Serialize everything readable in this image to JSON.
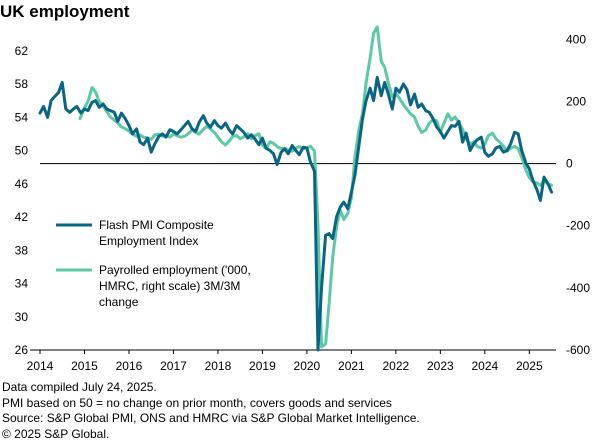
{
  "chart_data": {
    "type": "line",
    "title": "UK employment",
    "x_ticks": [
      "2014",
      "2015",
      "2016",
      "2017",
      "2018",
      "2019",
      "2020",
      "2021",
      "2022",
      "2023",
      "2024",
      "2025"
    ],
    "x_range": [
      2014.0,
      2025.6
    ],
    "left_axis": {
      "ticks": [
        26,
        30,
        34,
        38,
        42,
        46,
        50,
        54,
        58,
        62
      ],
      "range": [
        26,
        64.5
      ]
    },
    "right_axis": {
      "ticks": [
        -600,
        -400,
        -200,
        0,
        200,
        400
      ],
      "range": [
        -600,
        430
      ]
    },
    "reference_line": {
      "axis": "right",
      "value": 0
    },
    "legend": [
      {
        "label": "Flash PMI Composite Employment Index",
        "lines": [
          "Flash PMI Composite",
          "Employment Index"
        ],
        "color": "#0a6585"
      },
      {
        "label": "Payrolled employment ('000, HMRC, right scale) 3M/3M change",
        "lines": [
          "Payrolled employment ('000,",
          "HMRC, right scale) 3M/3M",
          "change"
        ],
        "color": "#5cc9a4"
      }
    ],
    "series": [
      {
        "name": "Flash PMI Composite Employment Index",
        "axis": "left",
        "color": "#0a6585",
        "points": [
          [
            2014.0,
            54.5
          ],
          [
            2014.08,
            55.3
          ],
          [
            2014.17,
            54.0
          ],
          [
            2014.25,
            56.0
          ],
          [
            2014.33,
            56.5
          ],
          [
            2014.42,
            57.0
          ],
          [
            2014.5,
            58.2
          ],
          [
            2014.58,
            55.0
          ],
          [
            2014.67,
            54.6
          ],
          [
            2014.75,
            55.0
          ],
          [
            2014.83,
            55.3
          ],
          [
            2014.92,
            54.5
          ],
          [
            2015.0,
            55.0
          ],
          [
            2015.08,
            54.8
          ],
          [
            2015.17,
            55.8
          ],
          [
            2015.25,
            56.0
          ],
          [
            2015.33,
            55.2
          ],
          [
            2015.42,
            55.6
          ],
          [
            2015.5,
            55.0
          ],
          [
            2015.58,
            54.8
          ],
          [
            2015.67,
            54.6
          ],
          [
            2015.75,
            53.5
          ],
          [
            2015.83,
            54.5
          ],
          [
            2015.92,
            53.8
          ],
          [
            2016.0,
            53.0
          ],
          [
            2016.08,
            52.0
          ],
          [
            2016.17,
            52.6
          ],
          [
            2016.25,
            51.0
          ],
          [
            2016.33,
            50.7
          ],
          [
            2016.42,
            51.5
          ],
          [
            2016.5,
            49.8
          ],
          [
            2016.58,
            50.8
          ],
          [
            2016.67,
            51.7
          ],
          [
            2016.75,
            52.0
          ],
          [
            2016.83,
            51.6
          ],
          [
            2016.92,
            52.5
          ],
          [
            2017.0,
            52.3
          ],
          [
            2017.08,
            52.0
          ],
          [
            2017.17,
            52.5
          ],
          [
            2017.25,
            53.0
          ],
          [
            2017.33,
            53.5
          ],
          [
            2017.42,
            52.6
          ],
          [
            2017.5,
            52.3
          ],
          [
            2017.58,
            53.4
          ],
          [
            2017.67,
            54.2
          ],
          [
            2017.75,
            53.3
          ],
          [
            2017.83,
            52.8
          ],
          [
            2017.92,
            53.6
          ],
          [
            2018.0,
            53.0
          ],
          [
            2018.08,
            52.7
          ],
          [
            2018.17,
            53.3
          ],
          [
            2018.25,
            52.5
          ],
          [
            2018.33,
            52.0
          ],
          [
            2018.42,
            53.0
          ],
          [
            2018.5,
            52.6
          ],
          [
            2018.58,
            52.2
          ],
          [
            2018.67,
            51.5
          ],
          [
            2018.75,
            51.9
          ],
          [
            2018.83,
            51.4
          ],
          [
            2018.92,
            50.7
          ],
          [
            2019.0,
            51.5
          ],
          [
            2019.08,
            50.3
          ],
          [
            2019.17,
            50.0
          ],
          [
            2019.25,
            49.6
          ],
          [
            2019.33,
            48.3
          ],
          [
            2019.42,
            49.8
          ],
          [
            2019.5,
            50.2
          ],
          [
            2019.58,
            49.6
          ],
          [
            2019.67,
            50.6
          ],
          [
            2019.75,
            50.0
          ],
          [
            2019.83,
            49.5
          ],
          [
            2019.92,
            50.4
          ],
          [
            2020.0,
            50.3
          ],
          [
            2020.08,
            48.6
          ],
          [
            2020.17,
            47.5
          ],
          [
            2020.25,
            26.0
          ],
          [
            2020.33,
            33.6
          ],
          [
            2020.42,
            39.8
          ],
          [
            2020.5,
            40.0
          ],
          [
            2020.58,
            39.4
          ],
          [
            2020.67,
            42.1
          ],
          [
            2020.75,
            43.2
          ],
          [
            2020.83,
            43.8
          ],
          [
            2020.92,
            43.0
          ],
          [
            2021.0,
            45.0
          ],
          [
            2021.08,
            47.0
          ],
          [
            2021.17,
            50.6
          ],
          [
            2021.25,
            53.8
          ],
          [
            2021.33,
            56.0
          ],
          [
            2021.42,
            57.5
          ],
          [
            2021.5,
            56.0
          ],
          [
            2021.58,
            58.8
          ],
          [
            2021.67,
            56.6
          ],
          [
            2021.75,
            58.2
          ],
          [
            2021.83,
            56.8
          ],
          [
            2021.92,
            55.0
          ],
          [
            2022.0,
            57.5
          ],
          [
            2022.08,
            57.0
          ],
          [
            2022.17,
            58.0
          ],
          [
            2022.25,
            57.3
          ],
          [
            2022.33,
            55.5
          ],
          [
            2022.42,
            56.8
          ],
          [
            2022.5,
            55.2
          ],
          [
            2022.58,
            55.6
          ],
          [
            2022.67,
            54.8
          ],
          [
            2022.75,
            54.6
          ],
          [
            2022.83,
            53.9
          ],
          [
            2022.92,
            52.8
          ],
          [
            2023.0,
            52.3
          ],
          [
            2023.08,
            51.5
          ],
          [
            2023.17,
            52.3
          ],
          [
            2023.25,
            53.0
          ],
          [
            2023.33,
            52.9
          ],
          [
            2023.42,
            53.5
          ],
          [
            2023.5,
            51.0
          ],
          [
            2023.58,
            52.1
          ],
          [
            2023.67,
            50.0
          ],
          [
            2023.75,
            50.8
          ],
          [
            2023.83,
            51.3
          ],
          [
            2023.92,
            51.6
          ],
          [
            2024.0,
            49.8
          ],
          [
            2024.08,
            49.3
          ],
          [
            2024.17,
            49.6
          ],
          [
            2024.25,
            50.3
          ],
          [
            2024.33,
            50.5
          ],
          [
            2024.42,
            49.8
          ],
          [
            2024.5,
            50.0
          ],
          [
            2024.58,
            50.8
          ],
          [
            2024.67,
            52.2
          ],
          [
            2024.75,
            52.0
          ],
          [
            2024.83,
            50.0
          ],
          [
            2024.92,
            48.5
          ],
          [
            2025.0,
            47.8
          ],
          [
            2025.08,
            46.4
          ],
          [
            2025.17,
            45.3
          ],
          [
            2025.25,
            44.0
          ],
          [
            2025.33,
            46.8
          ],
          [
            2025.42,
            46.0
          ],
          [
            2025.5,
            45.0
          ]
        ]
      },
      {
        "name": "Payrolled employment ('000, HMRC, right scale) 3M/3M change",
        "axis": "right",
        "color": "#5cc9a4",
        "points": [
          [
            2014.9,
            145
          ],
          [
            2015.0,
            180
          ],
          [
            2015.08,
            200
          ],
          [
            2015.17,
            245
          ],
          [
            2015.25,
            230
          ],
          [
            2015.33,
            200
          ],
          [
            2015.42,
            185
          ],
          [
            2015.5,
            168
          ],
          [
            2015.58,
            150
          ],
          [
            2015.67,
            140
          ],
          [
            2015.75,
            130
          ],
          [
            2015.83,
            118
          ],
          [
            2015.92,
            112
          ],
          [
            2016.0,
            105
          ],
          [
            2016.08,
            95
          ],
          [
            2016.17,
            88
          ],
          [
            2016.25,
            92
          ],
          [
            2016.33,
            85
          ],
          [
            2016.42,
            82
          ],
          [
            2016.5,
            78
          ],
          [
            2016.58,
            92
          ],
          [
            2016.67,
            95
          ],
          [
            2016.75,
            88
          ],
          [
            2016.83,
            92
          ],
          [
            2016.92,
            85
          ],
          [
            2017.0,
            95
          ],
          [
            2017.08,
            90
          ],
          [
            2017.17,
            85
          ],
          [
            2017.25,
            88
          ],
          [
            2017.33,
            96
          ],
          [
            2017.42,
            108
          ],
          [
            2017.5,
            100
          ],
          [
            2017.58,
            95
          ],
          [
            2017.67,
            110
          ],
          [
            2017.75,
            120
          ],
          [
            2017.83,
            112
          ],
          [
            2017.92,
            100
          ],
          [
            2018.0,
            85
          ],
          [
            2018.08,
            70
          ],
          [
            2018.17,
            60
          ],
          [
            2018.25,
            72
          ],
          [
            2018.33,
            88
          ],
          [
            2018.42,
            90
          ],
          [
            2018.5,
            80
          ],
          [
            2018.58,
            86
          ],
          [
            2018.67,
            96
          ],
          [
            2018.75,
            80
          ],
          [
            2018.83,
            90
          ],
          [
            2018.92,
            96
          ],
          [
            2019.0,
            60
          ],
          [
            2019.08,
            48
          ],
          [
            2019.17,
            70
          ],
          [
            2019.25,
            65
          ],
          [
            2019.33,
            55
          ],
          [
            2019.42,
            48
          ],
          [
            2019.5,
            50
          ],
          [
            2019.58,
            44
          ],
          [
            2019.67,
            40
          ],
          [
            2019.75,
            50
          ],
          [
            2019.83,
            55
          ],
          [
            2019.92,
            48
          ],
          [
            2020.0,
            50
          ],
          [
            2020.08,
            56
          ],
          [
            2020.17,
            40
          ],
          [
            2020.25,
            -200
          ],
          [
            2020.33,
            -590
          ],
          [
            2020.42,
            -580
          ],
          [
            2020.5,
            -450
          ],
          [
            2020.58,
            -300
          ],
          [
            2020.67,
            -200
          ],
          [
            2020.75,
            -150
          ],
          [
            2020.83,
            -180
          ],
          [
            2020.92,
            -160
          ],
          [
            2021.0,
            -110
          ],
          [
            2021.08,
            20
          ],
          [
            2021.17,
            110
          ],
          [
            2021.25,
            160
          ],
          [
            2021.33,
            260
          ],
          [
            2021.42,
            340
          ],
          [
            2021.5,
            420
          ],
          [
            2021.58,
            440
          ],
          [
            2021.67,
            330
          ],
          [
            2021.75,
            310
          ],
          [
            2021.83,
            260
          ],
          [
            2021.92,
            215
          ],
          [
            2022.0,
            225
          ],
          [
            2022.08,
            210
          ],
          [
            2022.17,
            190
          ],
          [
            2022.25,
            175
          ],
          [
            2022.33,
            160
          ],
          [
            2022.42,
            150
          ],
          [
            2022.5,
            120
          ],
          [
            2022.58,
            100
          ],
          [
            2022.67,
            108
          ],
          [
            2022.75,
            130
          ],
          [
            2022.83,
            140
          ],
          [
            2022.92,
            138
          ],
          [
            2023.0,
            100
          ],
          [
            2023.08,
            130
          ],
          [
            2023.17,
            160
          ],
          [
            2023.25,
            140
          ],
          [
            2023.33,
            150
          ],
          [
            2023.42,
            130
          ],
          [
            2023.5,
            110
          ],
          [
            2023.58,
            80
          ],
          [
            2023.67,
            62
          ],
          [
            2023.75,
            70
          ],
          [
            2023.83,
            55
          ],
          [
            2023.92,
            50
          ],
          [
            2024.0,
            62
          ],
          [
            2024.08,
            90
          ],
          [
            2024.17,
            98
          ],
          [
            2024.25,
            80
          ],
          [
            2024.33,
            70
          ],
          [
            2024.42,
            55
          ],
          [
            2024.5,
            40
          ],
          [
            2024.58,
            50
          ],
          [
            2024.67,
            55
          ],
          [
            2024.75,
            48
          ],
          [
            2024.83,
            20
          ],
          [
            2024.92,
            -20
          ],
          [
            2025.0,
            -45
          ],
          [
            2025.08,
            -58
          ],
          [
            2025.17,
            -62
          ],
          [
            2025.25,
            -70
          ],
          [
            2025.33,
            -55
          ],
          [
            2025.42,
            -65
          ],
          [
            2025.5,
            -70
          ]
        ]
      }
    ]
  },
  "notes": [
    "Data compiled July 24, 2025.",
    "PMI based on 50 = no change on prior month, covers goods and services",
    "Source: S&P Global PMI, ONS and HMRC via S&P Global Market Intelligence.",
    "© 2025 S&P Global."
  ]
}
